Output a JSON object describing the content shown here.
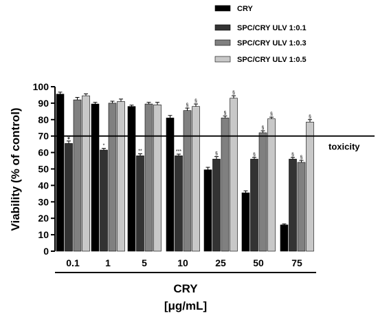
{
  "chart_data": {
    "type": "bar",
    "categories": [
      "0.1",
      "1",
      "5",
      "10",
      "25",
      "50",
      "75"
    ],
    "series": [
      {
        "name": "CRY",
        "color": "#000000",
        "values": [
          95.5,
          89.5,
          88,
          81,
          49.5,
          35.5,
          16
        ],
        "errors": [
          1.2,
          1.0,
          0.8,
          1.5,
          1.5,
          1.2,
          0.6
        ],
        "annotations": [
          "",
          "",
          "",
          "",
          "",
          "",
          ""
        ]
      },
      {
        "name": "SPC/CRY ULV 1:0.1",
        "color": "#333333",
        "values": [
          65.5,
          61.5,
          58,
          58,
          56,
          56,
          56
        ],
        "errors": [
          1.5,
          1.0,
          1.2,
          1.0,
          1.5,
          1.0,
          1.0
        ],
        "annotations": [
          "¥",
          "*",
          "**",
          "***",
          "§",
          "§",
          "§"
        ]
      },
      {
        "name": "SPC/CRY ULV 1:0.3",
        "color": "#808080",
        "values": [
          92,
          90,
          89.5,
          85.5,
          81,
          72,
          54
        ],
        "errors": [
          1.5,
          1.2,
          1.0,
          1.5,
          1.2,
          1.2,
          1.2
        ],
        "annotations": [
          "",
          "",
          "",
          "§",
          "§",
          "§",
          "§"
        ]
      },
      {
        "name": "SPC/CRY ULV 1:0.5",
        "color": "#c8c8c8",
        "values": [
          94.5,
          91,
          89,
          88,
          93,
          80.5,
          78.5
        ],
        "errors": [
          1.2,
          1.5,
          1.5,
          1.5,
          1.5,
          1.0,
          1.5
        ],
        "annotations": [
          "",
          "",
          "",
          "§",
          "§",
          "§",
          "§"
        ]
      }
    ],
    "ylabel": "Viability (% of control)",
    "xlabel_line1": "CRY",
    "xlabel_line2": "[μg/mL]",
    "ylim": [
      0,
      100
    ],
    "yticks": [
      0,
      10,
      20,
      30,
      40,
      50,
      60,
      70,
      80,
      90,
      100
    ],
    "reference_line": {
      "value": 70,
      "label": "toxicity"
    },
    "legend_position": "top-right",
    "grid": false
  }
}
